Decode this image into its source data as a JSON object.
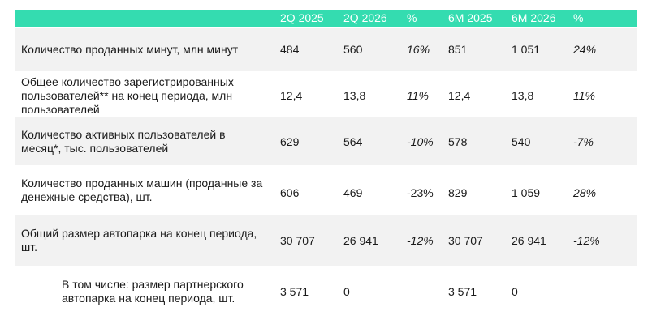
{
  "header": {
    "columns": [
      "2Q 2025",
      "2Q 2026",
      "%",
      "6M 2025",
      "6M 2026",
      "%"
    ]
  },
  "rows": [
    {
      "label": "Количество проданных минут, млн минут",
      "values": [
        "484",
        "560",
        "16%",
        "851",
        "1 051",
        "24%"
      ]
    },
    {
      "label": "Общее количество зарегистрированных пользователей** на конец периода, млн пользователей",
      "values": [
        "12,4",
        "13,8",
        "11%",
        "12,4",
        "13,8",
        "11%"
      ]
    },
    {
      "label": "Количество активных пользователей в месяц*, тыс. пользователей",
      "values": [
        "629",
        "564",
        "-10%",
        "578",
        "540",
        "-7%"
      ]
    },
    {
      "label": "Количество проданных машин (проданные за денежные средства), шт.",
      "values": [
        "606",
        "469",
        "-23%",
        "829",
        "1 059",
        "28%"
      ]
    },
    {
      "label": "Общий размер автопарка на конец периода, шт.",
      "values": [
        "30 707",
        "26 941",
        "-12%",
        "30 707",
        "26 941",
        "-12%"
      ]
    },
    {
      "label": "В том числе: размер партнерского автопарка на конец периода, шт.",
      "values": [
        "3 571",
        "0",
        "",
        "3 571",
        "0",
        ""
      ]
    }
  ]
}
